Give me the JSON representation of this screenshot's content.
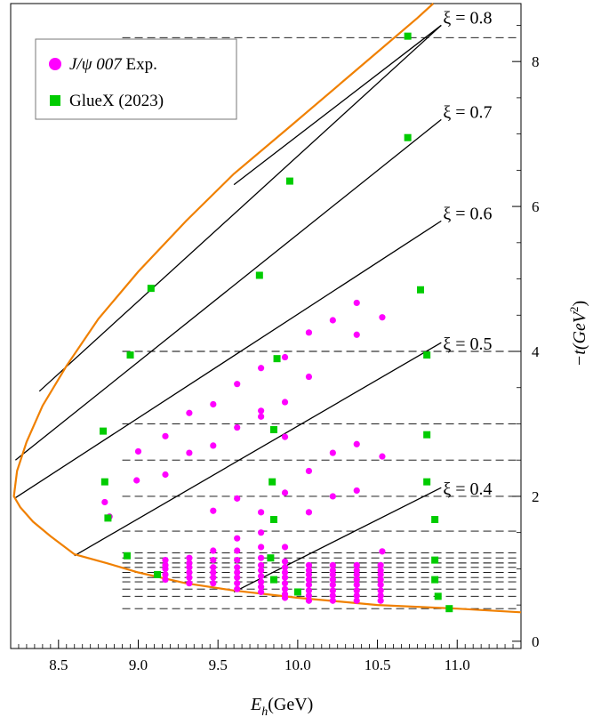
{
  "chart_data": {
    "type": "scatter",
    "xlabel": "E",
    "xlabel_sub": "h",
    "xlabel_unit": "(GeV)",
    "ylabel_pre": "−t(GeV",
    "ylabel_sup": "2",
    "ylabel_post": ")",
    "xlim": [
      8.2,
      11.4
    ],
    "ylim": [
      -0.1,
      8.8
    ],
    "x_ticks": [
      8.5,
      9.0,
      9.5,
      10.0,
      10.5,
      11.0
    ],
    "x_tick_labels": [
      "8.5",
      "9.0",
      "9.5",
      "10.0",
      "10.5",
      "11.0"
    ],
    "y_ticks": [
      0,
      2,
      4,
      6,
      8
    ],
    "y_tick_labels": [
      "0",
      "2",
      "4",
      "6",
      "8"
    ],
    "grid": false,
    "legend_position": "top-left",
    "colors": {
      "jpsi": "#ff00ff",
      "gluex": "#00cc00",
      "boundary": "#f08000",
      "lines": "#000000"
    },
    "series": [
      {
        "name": "J/ψ 007 Exp.",
        "name_italic": "J/ψ 007",
        "name_rest": " Exp.",
        "marker": "circle",
        "points": [
          [
            9.17,
            1.12
          ],
          [
            9.17,
            1.05
          ],
          [
            9.17,
            1.0
          ],
          [
            9.17,
            0.92
          ],
          [
            9.17,
            0.85
          ],
          [
            9.32,
            1.15
          ],
          [
            9.32,
            1.08
          ],
          [
            9.32,
            1.02
          ],
          [
            9.32,
            0.95
          ],
          [
            9.32,
            0.88
          ],
          [
            9.32,
            0.8
          ],
          [
            9.47,
            1.25
          ],
          [
            9.47,
            1.12
          ],
          [
            9.47,
            1.02
          ],
          [
            9.47,
            0.95
          ],
          [
            9.47,
            0.88
          ],
          [
            9.47,
            0.8
          ],
          [
            9.62,
            1.42
          ],
          [
            9.62,
            1.25
          ],
          [
            9.62,
            1.12
          ],
          [
            9.62,
            1.02
          ],
          [
            9.62,
            0.95
          ],
          [
            9.62,
            0.88
          ],
          [
            9.62,
            0.8
          ],
          [
            9.62,
            0.72
          ],
          [
            9.77,
            1.5
          ],
          [
            9.77,
            1.3
          ],
          [
            9.77,
            1.15
          ],
          [
            9.77,
            1.05
          ],
          [
            9.77,
            0.98
          ],
          [
            9.77,
            0.9
          ],
          [
            9.77,
            0.82
          ],
          [
            9.77,
            0.75
          ],
          [
            9.77,
            0.68
          ],
          [
            9.92,
            1.3
          ],
          [
            9.92,
            1.1
          ],
          [
            9.92,
            1.02
          ],
          [
            9.92,
            0.95
          ],
          [
            9.92,
            0.88
          ],
          [
            9.92,
            0.8
          ],
          [
            9.92,
            0.72
          ],
          [
            9.92,
            0.65
          ],
          [
            9.92,
            0.6
          ],
          [
            10.07,
            1.05
          ],
          [
            10.07,
            0.98
          ],
          [
            10.07,
            0.92
          ],
          [
            10.07,
            0.85
          ],
          [
            10.07,
            0.78
          ],
          [
            10.07,
            0.7
          ],
          [
            10.07,
            0.63
          ],
          [
            10.07,
            0.56
          ],
          [
            10.22,
            1.05
          ],
          [
            10.22,
            0.98
          ],
          [
            10.22,
            0.92
          ],
          [
            10.22,
            0.85
          ],
          [
            10.22,
            0.78
          ],
          [
            10.22,
            0.7
          ],
          [
            10.22,
            0.63
          ],
          [
            10.22,
            0.56
          ],
          [
            10.37,
            1.05
          ],
          [
            10.37,
            0.98
          ],
          [
            10.37,
            0.92
          ],
          [
            10.37,
            0.85
          ],
          [
            10.37,
            0.78
          ],
          [
            10.37,
            0.7
          ],
          [
            10.37,
            0.63
          ],
          [
            10.37,
            0.56
          ],
          [
            10.52,
            1.05
          ],
          [
            10.52,
            0.98
          ],
          [
            10.52,
            0.92
          ],
          [
            10.52,
            0.85
          ],
          [
            10.52,
            0.78
          ],
          [
            10.52,
            0.7
          ],
          [
            10.52,
            0.63
          ],
          [
            10.52,
            0.56
          ],
          [
            10.53,
            1.24
          ],
          [
            8.79,
            1.92
          ],
          [
            8.82,
            1.72
          ],
          [
            8.99,
            2.22
          ],
          [
            9.17,
            2.3
          ],
          [
            9.47,
            1.8
          ],
          [
            9.62,
            1.97
          ],
          [
            9.77,
            1.78
          ],
          [
            9.92,
            2.05
          ],
          [
            10.07,
            1.78
          ],
          [
            10.22,
            2.0
          ],
          [
            10.37,
            2.08
          ],
          [
            9.0,
            2.62
          ],
          [
            9.17,
            2.83
          ],
          [
            9.32,
            2.6
          ],
          [
            9.47,
            2.7
          ],
          [
            9.62,
            2.95
          ],
          [
            9.77,
            3.1
          ],
          [
            9.92,
            2.82
          ],
          [
            10.07,
            2.35
          ],
          [
            10.22,
            2.6
          ],
          [
            10.37,
            2.72
          ],
          [
            10.53,
            2.55
          ],
          [
            9.32,
            3.15
          ],
          [
            9.47,
            3.27
          ],
          [
            9.62,
            3.55
          ],
          [
            9.77,
            3.18
          ],
          [
            9.77,
            3.77
          ],
          [
            9.92,
            3.3
          ],
          [
            9.92,
            3.92
          ],
          [
            10.07,
            3.65
          ],
          [
            10.07,
            4.26
          ],
          [
            10.22,
            4.43
          ],
          [
            10.37,
            4.23
          ],
          [
            10.37,
            4.67
          ],
          [
            10.53,
            4.47
          ]
        ]
      },
      {
        "name": "GlueX (2023)",
        "marker": "square",
        "points": [
          [
            8.93,
            1.18
          ],
          [
            9.12,
            0.92
          ],
          [
            9.83,
            1.15
          ],
          [
            9.85,
            0.85
          ],
          [
            10.0,
            0.68
          ],
          [
            10.86,
            1.12
          ],
          [
            10.86,
            0.85
          ],
          [
            10.88,
            0.62
          ],
          [
            10.95,
            0.45
          ],
          [
            8.79,
            2.2
          ],
          [
            8.81,
            1.7
          ],
          [
            9.84,
            2.2
          ],
          [
            9.85,
            1.68
          ],
          [
            10.81,
            2.2
          ],
          [
            10.86,
            1.68
          ],
          [
            8.78,
            2.9
          ],
          [
            8.95,
            3.95
          ],
          [
            9.85,
            2.92
          ],
          [
            9.87,
            3.9
          ],
          [
            10.81,
            2.85
          ],
          [
            10.81,
            3.95
          ],
          [
            9.08,
            4.87
          ],
          [
            9.76,
            5.05
          ],
          [
            10.77,
            4.85
          ],
          [
            9.95,
            6.35
          ],
          [
            10.69,
            6.95
          ],
          [
            10.69,
            8.35
          ]
        ]
      }
    ],
    "dashed_levels": [
      0.45,
      0.62,
      0.72,
      0.82,
      0.88,
      0.95,
      1.02,
      1.08,
      1.15,
      1.22,
      1.52,
      2.0,
      2.5,
      3.0,
      4.0,
      8.33
    ],
    "xi_lines": [
      {
        "label": "ξ = 0.4",
        "start": [
          9.6,
          0.68
        ],
        "end": [
          10.9,
          2.12
        ]
      },
      {
        "label": "ξ = 0.5",
        "start": [
          8.6,
          1.18
        ],
        "end": [
          10.9,
          4.12
        ]
      },
      {
        "label": "ξ = 0.6",
        "start": [
          8.23,
          1.98
        ],
        "end": [
          10.9,
          5.8
        ]
      },
      {
        "label": "ξ = 0.7",
        "start": [
          8.23,
          2.5
        ],
        "end": [
          10.9,
          7.2
        ]
      },
      {
        "label": "ξ = 0.8",
        "start": [
          8.38,
          3.45
        ],
        "end": [
          10.9,
          8.5
        ]
      },
      {
        "label": "",
        "start": [
          9.6,
          6.3
        ],
        "end": [
          10.9,
          8.5
        ]
      }
    ],
    "xi_labels": [
      "ξ = 0.4",
      "ξ = 0.5",
      "ξ = 0.6",
      "ξ = 0.7",
      "ξ = 0.8"
    ],
    "xi_label_positions": [
      [
        10.9,
        2.0
      ],
      [
        10.9,
        4.0
      ],
      [
        10.9,
        5.8
      ],
      [
        10.9,
        7.2
      ],
      [
        10.9,
        8.5
      ]
    ],
    "boundary_points": [
      [
        11.4,
        0.4
      ],
      [
        11.0,
        0.45
      ],
      [
        10.5,
        0.5
      ],
      [
        10.0,
        0.6
      ],
      [
        9.6,
        0.7
      ],
      [
        9.3,
        0.8
      ],
      [
        9.0,
        0.95
      ],
      [
        8.8,
        1.08
      ],
      [
        8.6,
        1.2
      ],
      [
        8.45,
        1.45
      ],
      [
        8.34,
        1.65
      ],
      [
        8.26,
        1.85
      ],
      [
        8.22,
        2.0
      ],
      [
        8.24,
        2.35
      ],
      [
        8.3,
        2.75
      ],
      [
        8.4,
        3.25
      ],
      [
        8.55,
        3.8
      ],
      [
        8.75,
        4.45
      ],
      [
        9.0,
        5.1
      ],
      [
        9.3,
        5.8
      ],
      [
        9.6,
        6.45
      ],
      [
        9.95,
        7.1
      ],
      [
        10.35,
        7.85
      ],
      [
        10.75,
        8.6
      ],
      [
        10.85,
        8.8
      ]
    ]
  }
}
